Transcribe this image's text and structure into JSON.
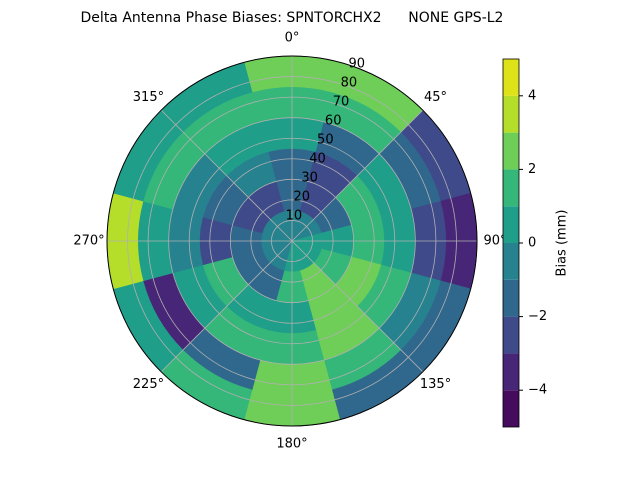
{
  "chart_data": {
    "type": "polar_contour",
    "title": "Delta Antenna Phase Biases: SPNTORCHX2      NONE GPS-L2",
    "theta": [
      0,
      30,
      60,
      90,
      120,
      150,
      180,
      210,
      240,
      270,
      300,
      330
    ],
    "r": [
      7.5,
      22.5,
      37.5,
      52.5,
      67.5,
      82.5
    ],
    "z": [
      [
        -0.5,
        -1.5,
        -1.5,
        0.5,
        1.5,
        2.5
      ],
      [
        -0.5,
        -2,
        -2.5,
        -1.5,
        1.5,
        3
      ],
      [
        -0.5,
        -1,
        1.5,
        0.5,
        -1.5,
        -2.5
      ],
      [
        0.5,
        0.5,
        1.5,
        0.5,
        -2,
        -3.5
      ],
      [
        0.5,
        1.5,
        2.5,
        1.5,
        -0.5,
        -1.5
      ],
      [
        0.5,
        2.5,
        2.5,
        2.5,
        1.5,
        -1.5
      ],
      [
        0.5,
        1.5,
        0.5,
        1.5,
        2.5,
        2.5
      ],
      [
        -0.5,
        -1.5,
        0.5,
        1.5,
        -1.5,
        1.5
      ],
      [
        -0.5,
        -1.5,
        1.5,
        0.5,
        -3.5,
        0.5
      ],
      [
        -0.5,
        -1.5,
        -2.5,
        -0.5,
        0.5,
        3.5
      ],
      [
        -0.5,
        -2.5,
        -1.5,
        -0.5,
        1.5,
        0.5
      ],
      [
        -0.5,
        -2,
        -0.5,
        0.5,
        1.5,
        0.5
      ]
    ],
    "rlim": [
      0,
      90
    ],
    "rticks": [
      10,
      20,
      30,
      40,
      50,
      60,
      70,
      80,
      90
    ],
    "thetaticks": [
      {
        "value": 0,
        "label": "0°"
      },
      {
        "value": 45,
        "label": "45°"
      },
      {
        "value": 90,
        "label": "90°"
      },
      {
        "value": 135,
        "label": "135°"
      },
      {
        "value": 180,
        "label": "180°"
      },
      {
        "value": 225,
        "label": "225°"
      },
      {
        "value": 270,
        "label": "270°"
      },
      {
        "value": 315,
        "label": "315°"
      }
    ],
    "levels": [
      -5,
      -4,
      -3,
      -2,
      -1,
      0,
      1,
      2,
      3,
      4,
      5
    ],
    "colors": [
      "#450c5e",
      "#482677",
      "#3e4a89",
      "#30678d",
      "#26828e",
      "#1f9e89",
      "#35b779",
      "#6ece58",
      "#b5de2b",
      "#dde318"
    ],
    "colorbar_label": "Bias (mm)",
    "cticks": [
      {
        "value": -4,
        "label": "−4"
      },
      {
        "value": -2,
        "label": "−2"
      },
      {
        "value": 0,
        "label": "0"
      },
      {
        "value": 2,
        "label": "2"
      },
      {
        "value": 4,
        "label": "4"
      }
    ],
    "grid": true
  }
}
